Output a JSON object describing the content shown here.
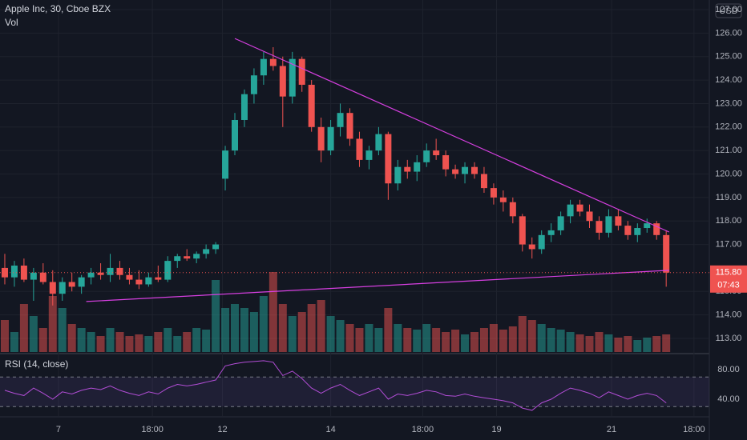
{
  "chart_data": {
    "type": "candlestick",
    "title": "Apple Inc, 30, Cboe BZX",
    "volume_label": "Vol",
    "currency": "USD",
    "up_color": "#26a69a",
    "down_color": "#ef5350",
    "candles": {
      "open": [
        116.0,
        115.6,
        116.1,
        115.5,
        115.8,
        115.4,
        114.9,
        115.4,
        115.2,
        115.6,
        115.8,
        115.7,
        116.0,
        115.7,
        115.5,
        115.3,
        115.6,
        115.5,
        116.3,
        116.5,
        116.4,
        116.6,
        116.8,
        119.8,
        121.0,
        122.3,
        123.4,
        124.2,
        124.9,
        124.6,
        123.3,
        124.9,
        123.8,
        122.0,
        121.0,
        122.0,
        122.6,
        121.5,
        120.6,
        121.0,
        121.7,
        119.6,
        120.3,
        120.1,
        120.5,
        121.0,
        120.8,
        120.2,
        120.0,
        120.3,
        120.0,
        119.4,
        119.0,
        118.8,
        118.2,
        117.0,
        116.8,
        117.4,
        117.6,
        118.2,
        118.7,
        118.4,
        118.0,
        117.5,
        118.2,
        117.8,
        117.4,
        117.7,
        117.9,
        117.4
      ],
      "high": [
        116.6,
        116.3,
        116.4,
        116.0,
        116.2,
        115.9,
        115.6,
        115.8,
        115.7,
        116.0,
        116.2,
        116.6,
        116.3,
        116.0,
        115.9,
        115.8,
        116.1,
        116.5,
        116.6,
        116.8,
        116.7,
        117.0,
        117.1,
        121.2,
        122.6,
        123.6,
        124.5,
        125.2,
        125.4,
        125.0,
        125.2,
        125.0,
        124.0,
        122.4,
        122.3,
        123.0,
        122.8,
        121.8,
        121.2,
        122.0,
        121.8,
        120.6,
        120.6,
        120.8,
        121.3,
        121.5,
        121.0,
        120.4,
        120.5,
        120.5,
        120.3,
        119.6,
        119.3,
        119.0,
        118.3,
        117.3,
        117.6,
        117.9,
        118.4,
        118.9,
        118.9,
        118.7,
        118.2,
        118.5,
        118.5,
        118.0,
        117.9,
        118.1,
        118.0,
        117.6
      ],
      "low": [
        115.3,
        115.2,
        115.4,
        114.6,
        115.3,
        114.4,
        114.6,
        115.0,
        114.9,
        115.3,
        115.5,
        115.4,
        115.5,
        115.3,
        115.1,
        115.2,
        115.4,
        115.4,
        116.0,
        116.3,
        116.2,
        116.4,
        116.6,
        119.3,
        120.8,
        122.0,
        123.0,
        123.8,
        124.4,
        122.0,
        123.0,
        123.5,
        121.8,
        120.5,
        120.8,
        121.6,
        121.2,
        120.3,
        120.2,
        120.8,
        118.9,
        119.3,
        119.8,
        119.7,
        120.3,
        120.6,
        119.9,
        119.8,
        119.6,
        119.8,
        119.2,
        118.7,
        118.4,
        117.9,
        116.7,
        116.4,
        116.6,
        117.1,
        117.4,
        117.9,
        118.2,
        117.7,
        117.2,
        117.3,
        117.6,
        117.2,
        117.1,
        117.5,
        117.2,
        115.2
      ],
      "close": [
        115.6,
        116.1,
        115.5,
        115.8,
        115.4,
        114.9,
        115.4,
        115.2,
        115.6,
        115.8,
        115.7,
        116.0,
        115.7,
        115.5,
        115.3,
        115.6,
        115.5,
        116.3,
        116.5,
        116.4,
        116.6,
        116.8,
        117.0,
        121.0,
        122.3,
        123.4,
        124.2,
        124.9,
        124.6,
        123.3,
        124.9,
        123.8,
        122.0,
        121.0,
        122.0,
        122.6,
        121.5,
        120.6,
        121.0,
        121.7,
        119.6,
        120.3,
        120.1,
        120.5,
        121.0,
        120.8,
        120.2,
        120.0,
        120.3,
        120.0,
        119.4,
        119.0,
        118.8,
        118.2,
        117.0,
        116.8,
        117.4,
        117.6,
        118.2,
        118.7,
        118.4,
        118.0,
        117.5,
        118.2,
        117.8,
        117.4,
        117.7,
        117.9,
        117.4,
        115.8
      ]
    },
    "volume": [
      40,
      25,
      60,
      45,
      30,
      70,
      55,
      35,
      30,
      25,
      20,
      30,
      25,
      20,
      22,
      20,
      25,
      30,
      20,
      25,
      30,
      28,
      90,
      55,
      60,
      55,
      50,
      70,
      100,
      60,
      45,
      50,
      60,
      65,
      45,
      40,
      35,
      30,
      35,
      30,
      55,
      35,
      30,
      28,
      35,
      30,
      25,
      28,
      22,
      25,
      30,
      35,
      28,
      32,
      45,
      40,
      35,
      30,
      28,
      25,
      22,
      20,
      25,
      22,
      18,
      20,
      15,
      18,
      20,
      22
    ],
    "xlim": [
      -0.5,
      73.5
    ],
    "xticks": [
      {
        "value": 5.6,
        "label": "7"
      },
      {
        "value": 15.4,
        "label": "18:00"
      },
      {
        "value": 22.7,
        "label": "12"
      },
      {
        "value": 34.0,
        "label": "14"
      },
      {
        "value": 43.6,
        "label": "18:00"
      },
      {
        "value": 51.3,
        "label": "19"
      },
      {
        "value": 63.3,
        "label": "21"
      },
      {
        "value": 71.9,
        "label": "18:00"
      }
    ],
    "ylim": [
      112.42,
      127.41
    ],
    "yticks": [
      {
        "value": 113,
        "label": "113.00"
      },
      {
        "value": 114,
        "label": "114.00"
      },
      {
        "value": 115,
        "label": "115.00"
      },
      {
        "value": 117,
        "label": "117.00"
      },
      {
        "value": 118,
        "label": "118.00"
      },
      {
        "value": 119,
        "label": "119.00"
      },
      {
        "value": 120,
        "label": "120.00"
      },
      {
        "value": 121,
        "label": "121.00"
      },
      {
        "value": 122,
        "label": "122.00"
      },
      {
        "value": 123,
        "label": "123.00"
      },
      {
        "value": 124,
        "label": "124.00"
      },
      {
        "value": 125,
        "label": "125.00"
      },
      {
        "value": 126,
        "label": "126.00"
      },
      {
        "value": 127,
        "label": "127.00"
      }
    ],
    "grid": true,
    "last_price": {
      "value": 115.8,
      "label": "115.80"
    },
    "countdown": "07:43",
    "trendlines": [
      {
        "color": "#d63fe0",
        "points": [
          {
            "x": 24.0,
            "price": 125.77
          },
          {
            "x": 69.3,
            "price": 117.53
          }
        ]
      },
      {
        "color": "#d63fe0",
        "points": [
          {
            "x": 8.5,
            "price": 114.57
          },
          {
            "x": 69.3,
            "price": 115.9
          }
        ]
      }
    ],
    "rsi": {
      "title": "RSI (14, close)",
      "color": "#b24dd6",
      "values": [
        52,
        48,
        45,
        55,
        48,
        40,
        50,
        47,
        52,
        55,
        53,
        58,
        52,
        48,
        45,
        50,
        47,
        55,
        60,
        58,
        60,
        63,
        66,
        85,
        88,
        90,
        91,
        92,
        90,
        72,
        78,
        68,
        55,
        48,
        55,
        60,
        52,
        45,
        50,
        55,
        40,
        47,
        45,
        48,
        52,
        50,
        45,
        44,
        47,
        44,
        42,
        40,
        38,
        35,
        28,
        25,
        35,
        40,
        48,
        55,
        52,
        48,
        42,
        50,
        45,
        40,
        45,
        48,
        45,
        35
      ],
      "ylim": [
        17.3,
        99.5
      ],
      "yticks": [
        {
          "value": 80,
          "label": "80.00"
        },
        {
          "value": 40,
          "label": "40.00"
        }
      ],
      "bands": [
        70,
        30
      ]
    }
  }
}
